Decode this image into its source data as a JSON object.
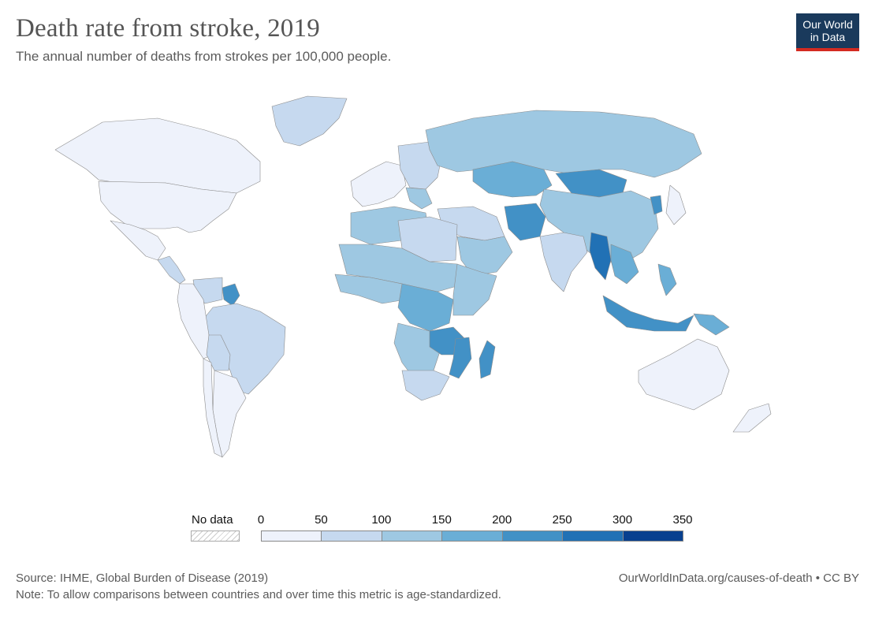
{
  "header": {
    "title": "Death rate from stroke, 2019",
    "subtitle": "The annual number of deaths from strokes per 100,000 people."
  },
  "logo": {
    "line1": "Our World",
    "line2": "in Data"
  },
  "legend": {
    "no_data_label": "No data",
    "ticks": [
      "0",
      "50",
      "100",
      "150",
      "200",
      "250",
      "300",
      "350"
    ],
    "colors": [
      "#eef2fb",
      "#c6d9ef",
      "#9ec8e2",
      "#6aaed6",
      "#4291c6",
      "#2171b5",
      "#08408f"
    ]
  },
  "footer": {
    "source": "Source: IHME, Global Burden of Disease (2019)",
    "note": "Note: To allow comparisons between countries and over time this metric is age-standardized.",
    "url": "OurWorldInData.org/causes-of-death • CC BY"
  },
  "map": {
    "regions": [
      {
        "name": "Canada",
        "bin": 0
      },
      {
        "name": "United States",
        "bin": 0
      },
      {
        "name": "Greenland",
        "bin": 1
      },
      {
        "name": "Mexico",
        "bin": 0
      },
      {
        "name": "Central America",
        "bin": 1
      },
      {
        "name": "Guyana",
        "bin": 4
      },
      {
        "name": "Venezuela",
        "bin": 1
      },
      {
        "name": "Brazil",
        "bin": 1
      },
      {
        "name": "Colombia / Peru",
        "bin": 0
      },
      {
        "name": "Bolivia",
        "bin": 1
      },
      {
        "name": "Argentina",
        "bin": 0
      },
      {
        "name": "Chile",
        "bin": 0
      },
      {
        "name": "Western Europe",
        "bin": 0
      },
      {
        "name": "Eastern Europe",
        "bin": 1
      },
      {
        "name": "Balkans",
        "bin": 2
      },
      {
        "name": "Russia",
        "bin": 2
      },
      {
        "name": "Kazakhstan",
        "bin": 3
      },
      {
        "name": "Mongolia",
        "bin": 4
      },
      {
        "name": "China",
        "bin": 2
      },
      {
        "name": "North Korea",
        "bin": 4
      },
      {
        "name": "Japan",
        "bin": 0
      },
      {
        "name": "Middle East",
        "bin": 1
      },
      {
        "name": "Arabia",
        "bin": 2
      },
      {
        "name": "Afghanistan",
        "bin": 4
      },
      {
        "name": "India",
        "bin": 1
      },
      {
        "name": "Myanmar",
        "bin": 5
      },
      {
        "name": "Indochina",
        "bin": 3
      },
      {
        "name": "Indonesia",
        "bin": 4
      },
      {
        "name": "Papua New Guinea",
        "bin": 3
      },
      {
        "name": "Philippines",
        "bin": 3
      },
      {
        "name": "North Africa",
        "bin": 2
      },
      {
        "name": "Egypt / Libya",
        "bin": 1
      },
      {
        "name": "Sahel",
        "bin": 2
      },
      {
        "name": "West Africa",
        "bin": 2
      },
      {
        "name": "Central Africa",
        "bin": 3
      },
      {
        "name": "East Africa",
        "bin": 2
      },
      {
        "name": "Southern Africa",
        "bin": 2
      },
      {
        "name": "Zambia / Malawi",
        "bin": 4
      },
      {
        "name": "Mozambique",
        "bin": 4
      },
      {
        "name": "Madagascar",
        "bin": 4
      },
      {
        "name": "South Africa",
        "bin": 1
      },
      {
        "name": "Australia",
        "bin": 0
      },
      {
        "name": "New Zealand",
        "bin": 0
      }
    ]
  }
}
